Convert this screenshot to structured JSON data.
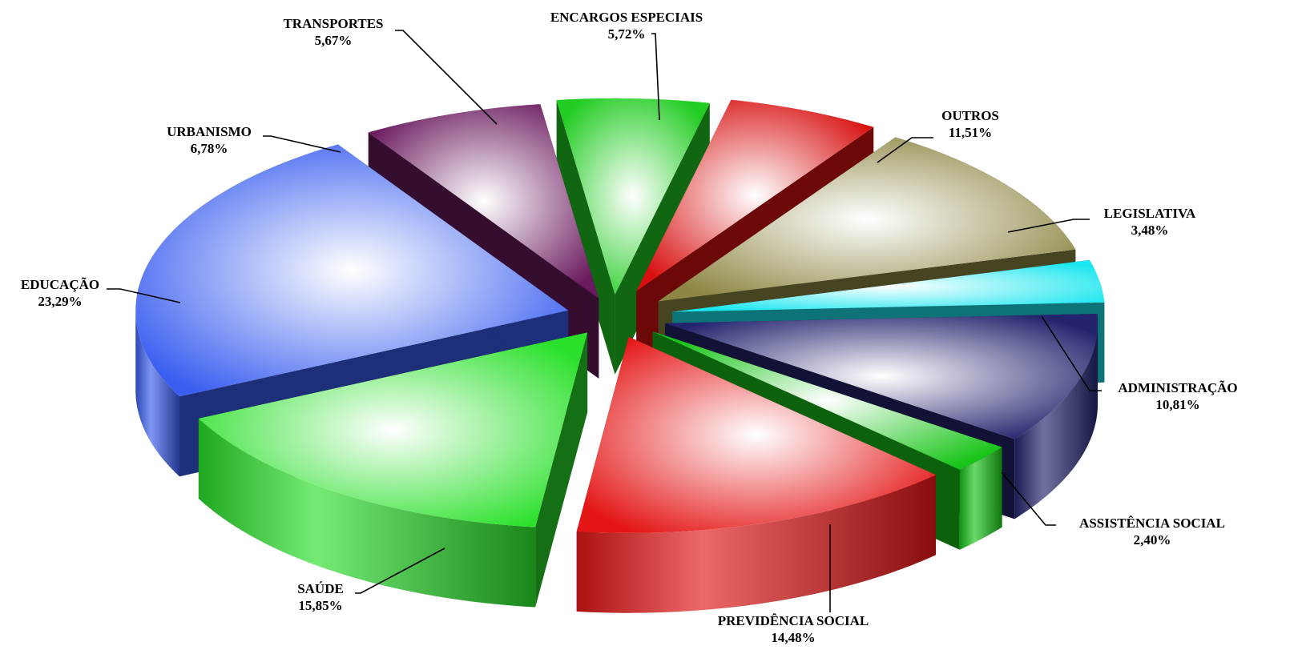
{
  "chart_data": {
    "type": "pie",
    "style": "3d exploded pie with gradient-shaded slices and leader-line labels",
    "title": "",
    "legend": "none",
    "slices": [
      {
        "label": "ENCARGOS ESPECIAIS",
        "value": 5.72,
        "value_text": "5,72%",
        "color": "#d81010"
      },
      {
        "label": "OUTROS",
        "value": 11.51,
        "value_text": "11,51%",
        "color": "#8e8744"
      },
      {
        "label": "LEGISLATIVA",
        "value": 3.48,
        "value_text": "3,48%",
        "color": "#1ae6ef"
      },
      {
        "label": "ADMINISTRAÇÃO",
        "value": 10.81,
        "value_text": "10,81%",
        "color": "#24246e"
      },
      {
        "label": "ASSISTÊNCIA SOCIAL",
        "value": 2.4,
        "value_text": "2,40%",
        "color": "#18c418"
      },
      {
        "label": "PREVIDÊNCIA SOCIAL",
        "value": 14.48,
        "value_text": "14,48%",
        "color": "#e41616"
      },
      {
        "label": "SAÚDE",
        "value": 15.85,
        "value_text": "15,85%",
        "color": "#2ae02a"
      },
      {
        "label": "EDUCAÇÃO",
        "value": 23.29,
        "value_text": "23,29%",
        "color": "#3a5ef0"
      },
      {
        "label": "URBANISMO",
        "value": 6.78,
        "value_text": "6,78%",
        "color": "#6a1a5e"
      },
      {
        "label": "TRANSPORTES",
        "value": 5.67,
        "value_text": "5,67%",
        "color": "#22cc22"
      }
    ]
  }
}
